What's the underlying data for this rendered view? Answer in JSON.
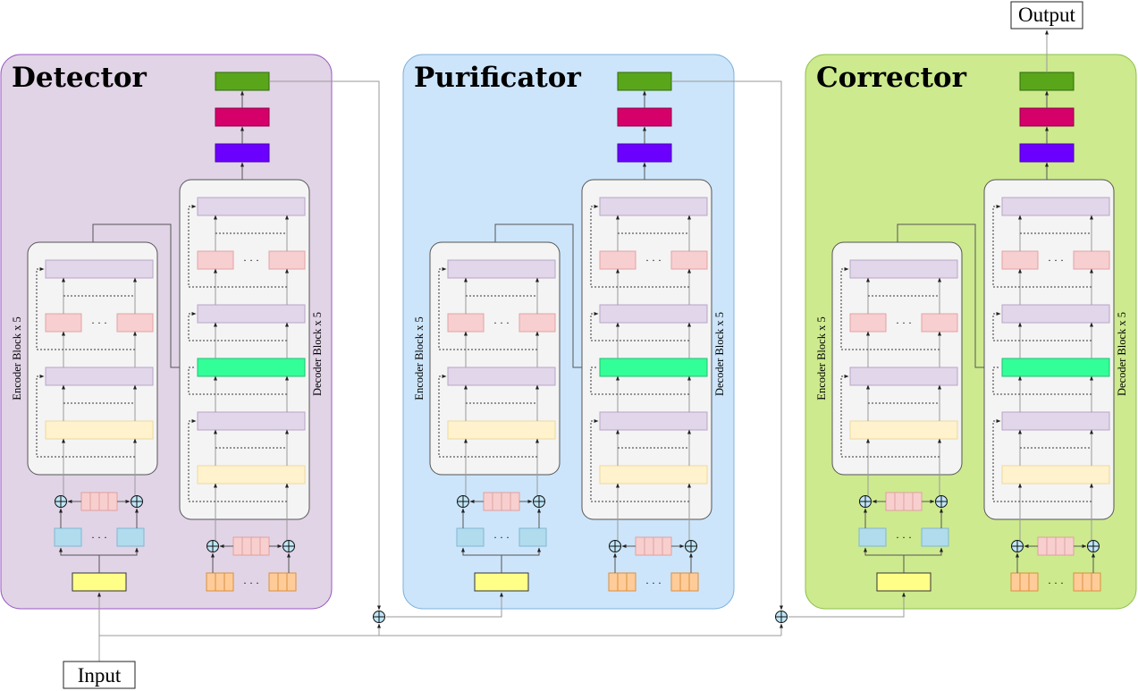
{
  "diagram": {
    "input_label": "Input",
    "output_label": "Output",
    "modules": [
      {
        "title": "Detector",
        "encoder_label": "Encoder Block x 5",
        "decoder_label": "Decoder Block x 5",
        "ellipsis": "· · ·",
        "bg": "#e1d4e6",
        "border": "#9b59c6"
      },
      {
        "title": "Purificator",
        "encoder_label": "Encoder Block x 5",
        "decoder_label": "Decoder Block x 5",
        "ellipsis": "· · ·",
        "bg": "#cce5fa",
        "border": "#7fb1de"
      },
      {
        "title": "Corrector",
        "encoder_label": "Encoder Block x 5",
        "decoder_label": "Decoder Block x 5",
        "ellipsis": "· · ·",
        "bg": "#cdea8e",
        "border": "#8cc24a"
      }
    ],
    "colors": {
      "output_head": "#5aa61b",
      "softmax_head": "#d6006b",
      "linear_head": "#6b00ff",
      "attention": "#e1d6ea",
      "feedforward": "#f7cfd0",
      "cross_attention": "#33ff99",
      "norm_input": "#fff2cc",
      "embedding_in": "#ffff88",
      "token_embed": "#b1dcee",
      "position_embed": "#f8cfcf",
      "target_tokens": "#ffcc99",
      "block_bg": "#f4f4f4"
    }
  }
}
